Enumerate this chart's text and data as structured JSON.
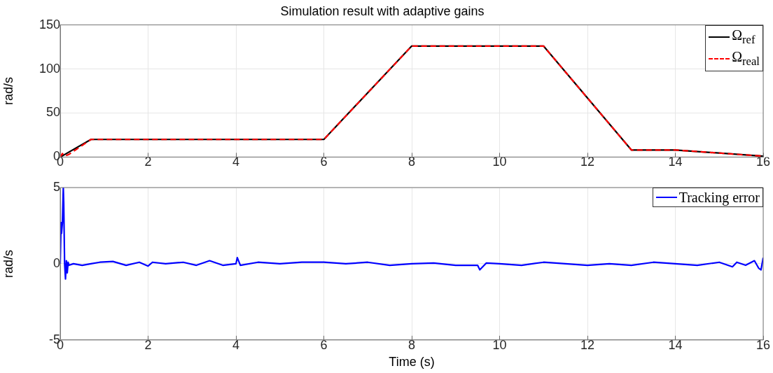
{
  "chart_data": [
    {
      "type": "line",
      "title": "Simulation result with adaptive gains",
      "ylabel": "rad/s",
      "xlim": [
        0,
        16
      ],
      "xticks": [
        0,
        2,
        4,
        6,
        8,
        10,
        12,
        14,
        16
      ],
      "ylim": [
        0,
        150
      ],
      "yticks": [
        0,
        50,
        100,
        150
      ],
      "grid": true,
      "legend": "top right",
      "series": [
        {
          "name": "Ω$_{ref}$",
          "color": "#000000",
          "line_style": "solid",
          "x": [
            0,
            0.7,
            6,
            8,
            11,
            13,
            14,
            16
          ],
          "values": [
            0,
            20,
            20,
            126,
            126,
            8,
            8,
            1
          ]
        },
        {
          "name": "Ω$_{real}$",
          "color": "#ff0000",
          "line_style": "dashed",
          "x": [
            0,
            0.05,
            0.1,
            0.2,
            0.7,
            6,
            8,
            11,
            13,
            14,
            16
          ],
          "values": [
            0,
            4,
            1,
            3,
            20,
            20,
            126,
            126,
            8,
            8,
            1
          ]
        }
      ]
    },
    {
      "type": "line",
      "xlabel": "Time (s)",
      "ylabel": "rad/s",
      "xlim": [
        0,
        16
      ],
      "xticks": [
        0,
        2,
        4,
        6,
        8,
        10,
        12,
        14,
        16
      ],
      "ylim": [
        -5,
        5
      ],
      "yticks": [
        -5,
        0,
        5
      ],
      "grid": true,
      "legend": "top right",
      "series": [
        {
          "name": "Tracking error",
          "color": "#0000ff",
          "line_style": "solid",
          "x": [
            0,
            0.02,
            0.03,
            0.05,
            0.07,
            0.08,
            0.1,
            0.12,
            0.14,
            0.16,
            0.18,
            0.2,
            0.3,
            0.5,
            0.7,
            0.9,
            1.2,
            1.5,
            1.8,
            2.0,
            2.1,
            2.4,
            2.8,
            3.1,
            3.4,
            3.7,
            4.0,
            4.03,
            4.1,
            4.5,
            5.0,
            5.5,
            6.0,
            6.5,
            7.0,
            7.5,
            8.0,
            8.5,
            9.0,
            9.5,
            9.55,
            9.7,
            10.0,
            10.5,
            11.0,
            11.5,
            12.0,
            12.5,
            13.0,
            13.5,
            14.0,
            14.5,
            15.0,
            15.3,
            15.4,
            15.6,
            15.8,
            15.9,
            15.95,
            16.0
          ],
          "values": [
            0,
            2.7,
            2.0,
            2.7,
            5,
            4,
            0,
            -1,
            0.2,
            -0.6,
            0.1,
            -0.1,
            0,
            -0.1,
            0,
            0.1,
            0.15,
            -0.1,
            0.1,
            -0.15,
            0.1,
            0,
            0.1,
            -0.1,
            0.2,
            -0.1,
            0,
            0.4,
            -0.1,
            0.1,
            0,
            0.1,
            0.1,
            0,
            0.1,
            -0.1,
            0,
            0.05,
            -0.1,
            -0.1,
            -0.4,
            0.05,
            0,
            -0.1,
            0.1,
            0,
            -0.1,
            0,
            -0.1,
            0.1,
            0,
            -0.1,
            0.1,
            -0.2,
            0.1,
            -0.1,
            0.2,
            -0.3,
            -0.4,
            0.4
          ]
        }
      ]
    }
  ]
}
